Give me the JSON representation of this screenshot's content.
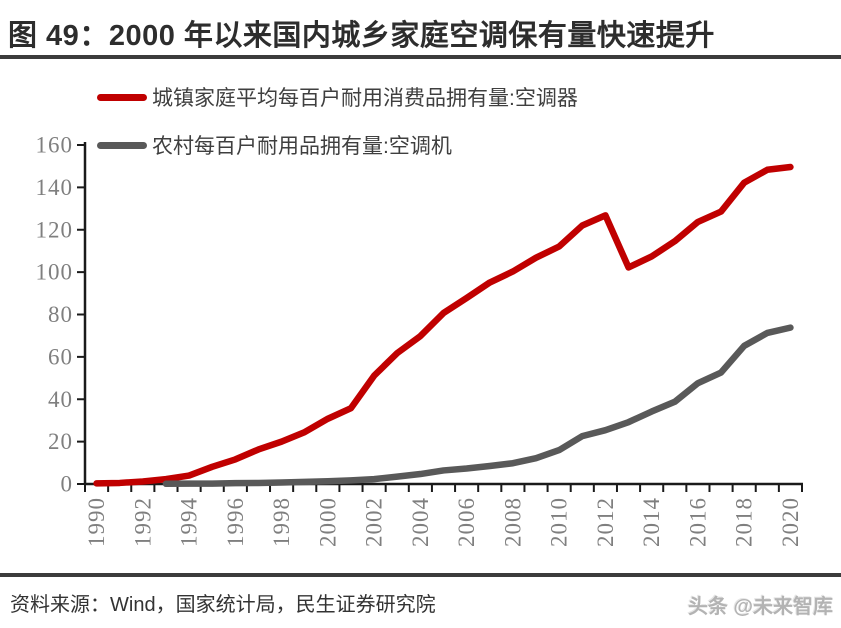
{
  "title": "图 49：2000 年以来国内城乡家庭空调保有量快速提升",
  "legend": [
    {
      "label": "城镇家庭平均每百户耐用消费品拥有量:空调器",
      "color": "#c00000"
    },
    {
      "label": "农村每百户耐用品拥有量:空调机",
      "color": "#595959"
    }
  ],
  "footer": {
    "source": "资料来源：Wind，国家统计局，民生证券研究院",
    "watermark": "头条 @未来智库"
  },
  "colors": {
    "axis": "#1a1a1a",
    "axis_labels": "#7f7f7f",
    "title_text": "#2d2d2d",
    "rule": "#3c3c3c",
    "urban_line": "#c00000",
    "rural_line": "#595959"
  },
  "chart_data": {
    "type": "line",
    "title": "",
    "xlabel": "",
    "ylabel": "",
    "x": [
      1990,
      1991,
      1992,
      1993,
      1994,
      1995,
      1996,
      1997,
      1998,
      1999,
      2000,
      2001,
      2002,
      2003,
      2004,
      2005,
      2006,
      2007,
      2008,
      2009,
      2010,
      2011,
      2012,
      2013,
      2014,
      2015,
      2016,
      2017,
      2018,
      2019,
      2020
    ],
    "series": [
      {
        "name": "城镇家庭平均每百户耐用消费品拥有量:空调器",
        "color": "#c00000",
        "values": [
          0.3,
          0.5,
          1.2,
          2.3,
          4.0,
          8.1,
          11.6,
          16.3,
          20.0,
          24.5,
          30.8,
          35.8,
          51.1,
          61.8,
          69.8,
          80.7,
          87.8,
          95.1,
          100.3,
          106.8,
          112.1,
          122.0,
          126.8,
          102.2,
          107.4,
          114.6,
          123.7,
          128.6,
          142.2,
          148.3,
          149.6
        ]
      },
      {
        "name": "农村每百户耐用品拥有量:空调机",
        "color": "#595959",
        "values": [
          null,
          null,
          null,
          0.1,
          0.2,
          0.2,
          0.4,
          0.5,
          0.7,
          1.0,
          1.3,
          1.7,
          2.3,
          3.5,
          4.7,
          6.4,
          7.3,
          8.5,
          9.8,
          12.2,
          16.0,
          22.6,
          25.4,
          29.2,
          34.2,
          38.8,
          47.6,
          52.6,
          65.2,
          71.3,
          73.8
        ]
      }
    ],
    "ylim": [
      0,
      160
    ],
    "ytick_step": 20,
    "xtick_label_every": 2,
    "x_label_rotation": 90,
    "grid": false,
    "legend_position": "top-left"
  }
}
